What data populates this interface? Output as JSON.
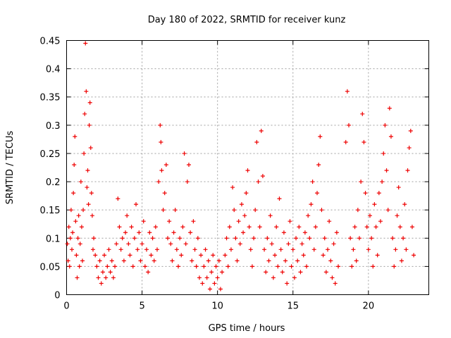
{
  "chart_data": {
    "type": "scatter",
    "title": "Day 180 of 2022, SRMTID for receiver kunz",
    "xlabel": "GPS time / hours",
    "ylabel": "SRMTID / TECUs",
    "xlim": [
      0,
      24
    ],
    "ylim": [
      0,
      0.45
    ],
    "x_ticks": [
      0,
      5,
      10,
      15,
      20
    ],
    "x_tick_labels": [
      "0",
      "5",
      "10",
      "15",
      "20"
    ],
    "y_ticks": [
      0,
      0.05,
      0.1,
      0.15,
      0.2,
      0.25,
      0.3,
      0.35,
      0.4,
      0.45
    ],
    "y_tick_labels": [
      "0",
      "0.05",
      "0.1",
      "0.15",
      "0.2",
      "0.25",
      "0.3",
      "0.35",
      "0.4",
      "0.45"
    ],
    "grid": true,
    "marker": "+",
    "series": [
      {
        "color": "#ee0000",
        "points": [
          [
            0.05,
            0.09
          ],
          [
            0.1,
            0.06
          ],
          [
            0.15,
            0.12
          ],
          [
            0.2,
            0.05
          ],
          [
            0.25,
            0.1
          ],
          [
            0.3,
            0.15
          ],
          [
            0.35,
            0.08
          ],
          [
            0.4,
            0.11
          ],
          [
            0.45,
            0.18
          ],
          [
            0.5,
            0.23
          ],
          [
            0.55,
            0.28
          ],
          [
            0.6,
            0.13
          ],
          [
            0.65,
            0.07
          ],
          [
            0.7,
            0.03
          ],
          [
            0.75,
            0.1
          ],
          [
            0.8,
            0.14
          ],
          [
            0.85,
            0.05
          ],
          [
            0.9,
            0.09
          ],
          [
            0.95,
            0.2
          ],
          [
            1.0,
            0.12
          ],
          [
            1.05,
            0.06
          ],
          [
            1.1,
            0.15
          ],
          [
            1.15,
            0.25
          ],
          [
            1.2,
            0.32
          ],
          [
            1.25,
            0.445
          ],
          [
            1.3,
            0.36
          ],
          [
            1.35,
            0.19
          ],
          [
            1.4,
            0.22
          ],
          [
            1.45,
            0.16
          ],
          [
            1.5,
            0.3
          ],
          [
            1.55,
            0.34
          ],
          [
            1.6,
            0.26
          ],
          [
            1.65,
            0.18
          ],
          [
            1.7,
            0.14
          ],
          [
            1.75,
            0.08
          ],
          [
            1.8,
            0.1
          ],
          [
            1.9,
            0.07
          ],
          [
            2.0,
            0.05
          ],
          [
            2.1,
            0.03
          ],
          [
            2.2,
            0.06
          ],
          [
            2.3,
            0.02
          ],
          [
            2.4,
            0.04
          ],
          [
            2.5,
            0.07
          ],
          [
            2.6,
            0.03
          ],
          [
            2.7,
            0.05
          ],
          [
            2.8,
            0.08
          ],
          [
            2.9,
            0.04
          ],
          [
            3.0,
            0.06
          ],
          [
            3.1,
            0.03
          ],
          [
            3.2,
            0.05
          ],
          [
            3.3,
            0.09
          ],
          [
            3.4,
            0.17
          ],
          [
            3.5,
            0.12
          ],
          [
            3.6,
            0.08
          ],
          [
            3.7,
            0.1
          ],
          [
            3.8,
            0.06
          ],
          [
            3.9,
            0.11
          ],
          [
            4.0,
            0.14
          ],
          [
            4.1,
            0.09
          ],
          [
            4.2,
            0.07
          ],
          [
            4.3,
            0.12
          ],
          [
            4.4,
            0.05
          ],
          [
            4.5,
            0.1
          ],
          [
            4.6,
            0.16
          ],
          [
            4.7,
            0.08
          ],
          [
            4.8,
            0.11
          ],
          [
            4.9,
            0.06
          ],
          [
            5.0,
            0.09
          ],
          [
            5.1,
            0.13
          ],
          [
            5.2,
            0.05
          ],
          [
            5.3,
            0.08
          ],
          [
            5.4,
            0.04
          ],
          [
            5.5,
            0.11
          ],
          [
            5.6,
            0.07
          ],
          [
            5.7,
            0.1
          ],
          [
            5.8,
            0.06
          ],
          [
            5.9,
            0.12
          ],
          [
            6.0,
            0.08
          ],
          [
            6.1,
            0.2
          ],
          [
            6.2,
            0.3
          ],
          [
            6.25,
            0.27
          ],
          [
            6.3,
            0.22
          ],
          [
            6.4,
            0.15
          ],
          [
            6.5,
            0.18
          ],
          [
            6.6,
            0.23
          ],
          [
            6.7,
            0.1
          ],
          [
            6.8,
            0.13
          ],
          [
            6.9,
            0.09
          ],
          [
            7.0,
            0.06
          ],
          [
            7.1,
            0.11
          ],
          [
            7.2,
            0.15
          ],
          [
            7.3,
            0.08
          ],
          [
            7.4,
            0.05
          ],
          [
            7.5,
            0.1
          ],
          [
            7.6,
            0.07
          ],
          [
            7.7,
            0.12
          ],
          [
            7.8,
            0.25
          ],
          [
            7.9,
            0.09
          ],
          [
            8.0,
            0.2
          ],
          [
            8.1,
            0.23
          ],
          [
            8.2,
            0.11
          ],
          [
            8.3,
            0.06
          ],
          [
            8.4,
            0.13
          ],
          [
            8.5,
            0.08
          ],
          [
            8.6,
            0.05
          ],
          [
            8.7,
            0.1
          ],
          [
            8.8,
            0.03
          ],
          [
            8.9,
            0.07
          ],
          [
            9.0,
            0.02
          ],
          [
            9.1,
            0.05
          ],
          [
            9.2,
            0.08
          ],
          [
            9.3,
            0.03
          ],
          [
            9.4,
            0.06
          ],
          [
            9.5,
            0.01
          ],
          [
            9.6,
            0.04
          ],
          [
            9.7,
            0.07
          ],
          [
            9.8,
            0.02
          ],
          [
            9.9,
            0.05
          ],
          [
            10.0,
            0.03
          ],
          [
            10.1,
            0.06
          ],
          [
            10.2,
            0.01
          ],
          [
            10.3,
            0.04
          ],
          [
            10.5,
            0.07
          ],
          [
            10.6,
            0.1
          ],
          [
            10.7,
            0.05
          ],
          [
            10.8,
            0.12
          ],
          [
            10.9,
            0.08
          ],
          [
            11.0,
            0.19
          ],
          [
            11.1,
            0.15
          ],
          [
            11.2,
            0.1
          ],
          [
            11.3,
            0.06
          ],
          [
            11.4,
            0.13
          ],
          [
            11.5,
            0.09
          ],
          [
            11.6,
            0.16
          ],
          [
            11.7,
            0.11
          ],
          [
            11.8,
            0.14
          ],
          [
            11.9,
            0.18
          ],
          [
            12.0,
            0.22
          ],
          [
            12.1,
            0.12
          ],
          [
            12.2,
            0.08
          ],
          [
            12.3,
            0.05
          ],
          [
            12.4,
            0.1
          ],
          [
            12.5,
            0.15
          ],
          [
            12.6,
            0.27
          ],
          [
            12.7,
            0.2
          ],
          [
            12.8,
            0.12
          ],
          [
            12.9,
            0.29
          ],
          [
            13.0,
            0.21
          ],
          [
            13.1,
            0.08
          ],
          [
            13.2,
            0.04
          ],
          [
            13.3,
            0.1
          ],
          [
            13.4,
            0.06
          ],
          [
            13.5,
            0.14
          ],
          [
            13.6,
            0.09
          ],
          [
            13.7,
            0.03
          ],
          [
            13.8,
            0.07
          ],
          [
            13.9,
            0.12
          ],
          [
            14.0,
            0.05
          ],
          [
            14.1,
            0.17
          ],
          [
            14.2,
            0.08
          ],
          [
            14.3,
            0.04
          ],
          [
            14.4,
            0.11
          ],
          [
            14.5,
            0.06
          ],
          [
            14.6,
            0.02
          ],
          [
            14.7,
            0.09
          ],
          [
            14.8,
            0.13
          ],
          [
            14.9,
            0.05
          ],
          [
            15.0,
            0.08
          ],
          [
            15.1,
            0.03
          ],
          [
            15.2,
            0.1
          ],
          [
            15.3,
            0.06
          ],
          [
            15.4,
            0.12
          ],
          [
            15.5,
            0.04
          ],
          [
            15.6,
            0.09
          ],
          [
            15.7,
            0.07
          ],
          [
            15.8,
            0.11
          ],
          [
            15.9,
            0.05
          ],
          [
            16.0,
            0.14
          ],
          [
            16.1,
            0.1
          ],
          [
            16.2,
            0.16
          ],
          [
            16.3,
            0.2
          ],
          [
            16.4,
            0.08
          ],
          [
            16.5,
            0.12
          ],
          [
            16.6,
            0.18
          ],
          [
            16.7,
            0.23
          ],
          [
            16.8,
            0.28
          ],
          [
            16.9,
            0.15
          ],
          [
            17.0,
            0.07
          ],
          [
            17.1,
            0.1
          ],
          [
            17.2,
            0.04
          ],
          [
            17.3,
            0.08
          ],
          [
            17.4,
            0.13
          ],
          [
            17.5,
            0.06
          ],
          [
            17.6,
            0.03
          ],
          [
            17.7,
            0.09
          ],
          [
            17.8,
            0.02
          ],
          [
            17.9,
            0.11
          ],
          [
            18.0,
            0.05
          ],
          [
            18.5,
            0.27
          ],
          [
            18.6,
            0.36
          ],
          [
            18.7,
            0.3
          ],
          [
            18.8,
            0.1
          ],
          [
            18.9,
            0.05
          ],
          [
            19.0,
            0.08
          ],
          [
            19.1,
            0.12
          ],
          [
            19.2,
            0.06
          ],
          [
            19.3,
            0.15
          ],
          [
            19.4,
            0.1
          ],
          [
            19.5,
            0.2
          ],
          [
            19.6,
            0.32
          ],
          [
            19.7,
            0.27
          ],
          [
            19.8,
            0.18
          ],
          [
            19.9,
            0.12
          ],
          [
            20.0,
            0.08
          ],
          [
            20.1,
            0.14
          ],
          [
            20.2,
            0.1
          ],
          [
            20.3,
            0.05
          ],
          [
            20.4,
            0.16
          ],
          [
            20.5,
            0.12
          ],
          [
            20.6,
            0.07
          ],
          [
            20.7,
            0.18
          ],
          [
            20.8,
            0.13
          ],
          [
            20.9,
            0.2
          ],
          [
            21.0,
            0.25
          ],
          [
            21.1,
            0.3
          ],
          [
            21.2,
            0.22
          ],
          [
            21.3,
            0.15
          ],
          [
            21.4,
            0.33
          ],
          [
            21.5,
            0.28
          ],
          [
            21.6,
            0.1
          ],
          [
            21.7,
            0.05
          ],
          [
            21.8,
            0.08
          ],
          [
            21.9,
            0.14
          ],
          [
            22.0,
            0.19
          ],
          [
            22.1,
            0.12
          ],
          [
            22.2,
            0.06
          ],
          [
            22.3,
            0.1
          ],
          [
            22.4,
            0.16
          ],
          [
            22.5,
            0.08
          ],
          [
            22.6,
            0.22
          ],
          [
            22.7,
            0.26
          ],
          [
            22.8,
            0.29
          ],
          [
            22.9,
            0.12
          ],
          [
            23.0,
            0.07
          ]
        ]
      }
    ]
  }
}
